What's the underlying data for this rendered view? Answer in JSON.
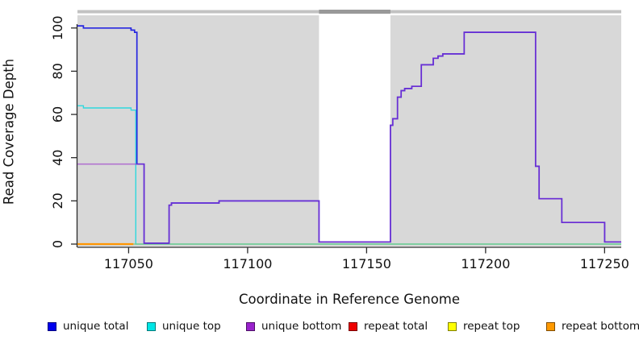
{
  "figure": {
    "xlabel": "Coordinate in Reference Genome",
    "ylabel": "Read Coverage Depth"
  },
  "legend": {
    "items": [
      {
        "label": "unique total",
        "color": "#0000ee",
        "border": "#000080"
      },
      {
        "label": "unique top",
        "color": "#00e6e6",
        "border": "#007a7a"
      },
      {
        "label": "unique bottom",
        "color": "#9922cc",
        "border": "#4d0f66"
      },
      {
        "label": "repeat total",
        "color": "#ee0000",
        "border": "#770000"
      },
      {
        "label": "repeat top",
        "color": "#ffff00",
        "border": "#808000"
      },
      {
        "label": "repeat bottom",
        "color": "#ff9900",
        "border": "#804d00"
      }
    ]
  },
  "chart_data": {
    "type": "line",
    "step": "after",
    "title": "",
    "xlabel": "Coordinate in Reference Genome",
    "ylabel": "Read Coverage Depth",
    "xlim": [
      117028.5,
      117257
    ],
    "ylim": [
      0,
      105.5
    ],
    "x_ticks": [
      117050,
      117100,
      117150,
      117200,
      117250
    ],
    "y_ticks": [
      0,
      20,
      40,
      60,
      80,
      100
    ],
    "grid": false,
    "legend_position": "bottom",
    "masked_region": {
      "x_start": 117130,
      "x_end": 117160
    },
    "colors": {
      "plot_bg": "#d8d8d8",
      "masked_bg": "#ffffff",
      "top_strip": "#c2c2c2",
      "top_strip_masked": "#999999",
      "axis": "#2a2a2a"
    },
    "series": [
      {
        "name": "unique top",
        "color": "#2fd8dd",
        "width": 1.4,
        "opacity": 1,
        "points": [
          [
            117028.5,
            64
          ],
          [
            117031,
            63
          ],
          [
            117051,
            62
          ],
          [
            117053,
            0
          ],
          [
            117257,
            0
          ]
        ]
      },
      {
        "name": "baseline",
        "color": "#7dc87d",
        "width": 1.3,
        "opacity": 1,
        "points": [
          [
            117028.5,
            0
          ],
          [
            117257,
            0
          ]
        ]
      },
      {
        "name": "repeat total",
        "color": "#ee0000",
        "width": 1.4,
        "opacity": 1,
        "points": []
      },
      {
        "name": "repeat top",
        "color": "#ffff00",
        "width": 1.4,
        "opacity": 1,
        "points": []
      },
      {
        "name": "repeat bottom",
        "color": "#ff9500",
        "width": 2.2,
        "opacity": 1,
        "points": [
          [
            117028.5,
            0
          ],
          [
            117052,
            0
          ]
        ]
      },
      {
        "name": "unique total",
        "color": "#2727e0",
        "width": 1.7,
        "opacity": 1,
        "points": [
          [
            117028.5,
            101
          ],
          [
            117031,
            100
          ],
          [
            117051,
            99
          ],
          [
            117052.5,
            98
          ],
          [
            117053.5,
            37
          ],
          [
            117056.5,
            0.4
          ],
          [
            117067,
            18
          ],
          [
            117068,
            19
          ],
          [
            117088,
            20
          ],
          [
            117130,
            1
          ],
          [
            117160,
            55
          ],
          [
            117161,
            58
          ],
          [
            117163,
            68
          ],
          [
            117164.5,
            71
          ],
          [
            117166,
            72
          ],
          [
            117169,
            73
          ],
          [
            117173,
            83
          ],
          [
            117178,
            86
          ],
          [
            117180,
            87
          ],
          [
            117182,
            88
          ],
          [
            117191,
            98
          ],
          [
            117221,
            36
          ],
          [
            117222.5,
            21
          ],
          [
            117232,
            10
          ],
          [
            117250,
            1
          ],
          [
            117257,
            1
          ]
        ]
      },
      {
        "name": "unique bottom",
        "color": "#9932cc",
        "width": 1.6,
        "opacity": 0.6,
        "points": [
          [
            117028.5,
            37
          ],
          [
            117056.5,
            0.4
          ],
          [
            117067,
            18
          ],
          [
            117068,
            19
          ],
          [
            117088,
            20
          ],
          [
            117130,
            1
          ],
          [
            117160,
            55
          ],
          [
            117161,
            58
          ],
          [
            117163,
            68
          ],
          [
            117164.5,
            71
          ],
          [
            117166,
            72
          ],
          [
            117169,
            73
          ],
          [
            117173,
            83
          ],
          [
            117178,
            86
          ],
          [
            117180,
            87
          ],
          [
            117182,
            88
          ],
          [
            117191,
            98
          ],
          [
            117221,
            36
          ],
          [
            117222.5,
            21
          ],
          [
            117232,
            10
          ],
          [
            117250,
            1
          ],
          [
            117257,
            1
          ]
        ]
      }
    ]
  }
}
